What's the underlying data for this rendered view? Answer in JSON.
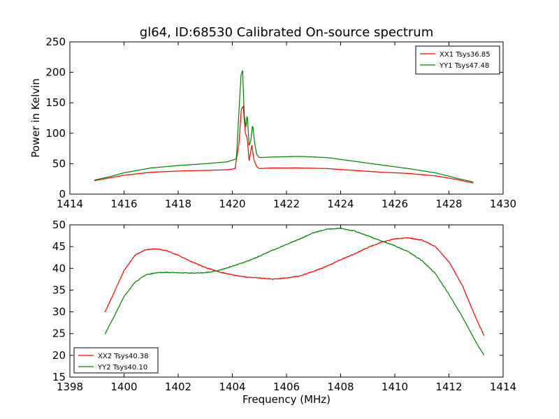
{
  "title": "gl64, ID:68530 Calibrated On-source spectrum",
  "colors": {
    "xx": "#ff0000",
    "yy": "#008000"
  },
  "chart_data": [
    {
      "type": "line",
      "ylabel": "Power in Kelvin",
      "xlabel": "",
      "xlim": [
        1414,
        1430
      ],
      "ylim": [
        0,
        250
      ],
      "xticks": [
        1414,
        1416,
        1418,
        1420,
        1422,
        1424,
        1426,
        1428,
        1430
      ],
      "yticks": [
        0,
        50,
        100,
        150,
        200,
        250
      ],
      "legend_position": "top-right",
      "series": [
        {
          "name": "XX1 Tsys36.85",
          "color": "#ff0000",
          "x": [
            1414.9,
            1415.5,
            1416,
            1417,
            1418,
            1419,
            1419.8,
            1420.1,
            1420.25,
            1420.33,
            1420.4,
            1420.48,
            1420.55,
            1420.62,
            1420.72,
            1420.8,
            1420.9,
            1421.0,
            1421.5,
            1422.5,
            1423.5,
            1424.5,
            1425.5,
            1426.5,
            1427.5,
            1428.3,
            1428.9
          ],
          "y": [
            22,
            27,
            31,
            36,
            38,
            39,
            40,
            42,
            85,
            140,
            144,
            100,
            92,
            55,
            80,
            56,
            45,
            42,
            43,
            43,
            42,
            39,
            36,
            34,
            30,
            24,
            18
          ]
        },
        {
          "name": "YY1 Tsys47.48",
          "color": "#008000",
          "x": [
            1414.9,
            1415.5,
            1416,
            1417,
            1418,
            1419,
            1419.8,
            1420.15,
            1420.25,
            1420.32,
            1420.38,
            1420.44,
            1420.5,
            1420.55,
            1420.62,
            1420.68,
            1420.75,
            1420.82,
            1420.9,
            1421.0,
            1421.5,
            1422.5,
            1423.5,
            1424.5,
            1425.5,
            1426.5,
            1427.5,
            1428.3,
            1428.9
          ],
          "y": [
            23,
            29,
            35,
            43,
            47,
            50,
            53,
            58,
            140,
            195,
            203,
            130,
            110,
            132,
            80,
            87,
            115,
            85,
            65,
            60,
            61,
            62,
            60,
            54,
            48,
            42,
            35,
            26,
            20
          ]
        }
      ]
    },
    {
      "type": "line",
      "xlabel": "Frequency (MHz)",
      "ylabel": "",
      "xlim": [
        1398,
        1414
      ],
      "ylim": [
        15,
        50
      ],
      "xticks": [
        1398,
        1400,
        1402,
        1404,
        1406,
        1408,
        1410,
        1412,
        1414
      ],
      "yticks": [
        15,
        20,
        25,
        30,
        35,
        40,
        45,
        50
      ],
      "legend_position": "bottom-left",
      "series": [
        {
          "name": "XX2 Tsys40.38",
          "color": "#ff0000",
          "x": [
            1399.3,
            1399.6,
            1400.0,
            1400.4,
            1400.8,
            1401.2,
            1401.6,
            1402.0,
            1402.5,
            1403.0,
            1403.5,
            1404.0,
            1404.5,
            1405.0,
            1405.5,
            1406.0,
            1406.5,
            1407.0,
            1407.5,
            1408.0,
            1408.5,
            1409.0,
            1409.5,
            1410.0,
            1410.5,
            1411.0,
            1411.5,
            1412.0,
            1412.5,
            1413.0,
            1413.3
          ],
          "y": [
            30,
            34,
            39.5,
            43,
            44.3,
            44.5,
            44.0,
            43.0,
            41.5,
            40.2,
            39.2,
            38.5,
            38.0,
            37.8,
            37.5,
            37.8,
            38.3,
            39.3,
            40.5,
            42.0,
            43.3,
            44.8,
            46.0,
            46.8,
            47.0,
            46.5,
            45.0,
            41.5,
            36.0,
            28.5,
            24.5
          ]
        },
        {
          "name": "YY2 Tsys40.10",
          "color": "#008000",
          "x": [
            1399.3,
            1399.6,
            1400.0,
            1400.4,
            1400.8,
            1401.2,
            1401.6,
            1402.0,
            1402.5,
            1403.0,
            1403.5,
            1404.0,
            1404.5,
            1405.0,
            1405.5,
            1406.0,
            1406.5,
            1407.0,
            1407.5,
            1408.0,
            1408.5,
            1409.0,
            1409.5,
            1410.0,
            1410.5,
            1411.0,
            1411.5,
            1412.0,
            1412.5,
            1413.0,
            1413.3
          ],
          "y": [
            25,
            28.5,
            33.5,
            36.8,
            38.5,
            39.0,
            39.1,
            39.0,
            38.9,
            39.0,
            39.5,
            40.5,
            41.5,
            42.8,
            44.2,
            45.5,
            46.8,
            48.2,
            49.0,
            49.2,
            48.6,
            47.5,
            46.3,
            45.2,
            43.8,
            41.8,
            38.8,
            34.0,
            28.8,
            23.0,
            20.0
          ]
        }
      ]
    }
  ]
}
